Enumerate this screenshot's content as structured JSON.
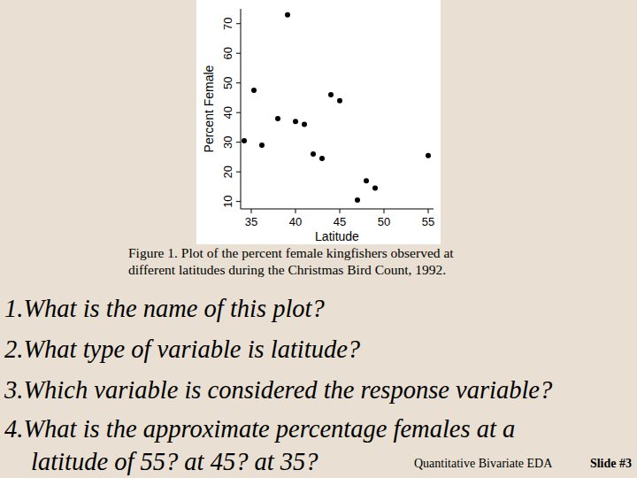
{
  "chart_data": {
    "type": "scatter",
    "x_label": "Latitude",
    "y_label": "Percent Female",
    "x": [
      34.2,
      35.3,
      36.2,
      38,
      39.1,
      40,
      41,
      42,
      43,
      44,
      45,
      47,
      48,
      49,
      55
    ],
    "values": [
      30.5,
      47.5,
      29,
      38,
      73,
      37,
      36,
      26,
      24.5,
      46,
      44,
      10.5,
      17,
      14.5,
      25.5
    ],
    "color": "#000000",
    "marker": "circle",
    "xlim": [
      33.8,
      55.6
    ],
    "ylim": [
      7.5,
      75
    ],
    "xticks": [
      35,
      40,
      45,
      50,
      55
    ],
    "yticks": [
      10,
      20,
      30,
      40,
      50,
      60,
      70
    ]
  },
  "slide": {
    "caption": [
      "Figure 1.  Plot of the percent female kingfishers observed at",
      "different latitudes during the Christmas Bird Count, 1992."
    ],
    "questions": [
      [
        "1.What is the name of this plot?"
      ],
      [
        "2.What type of variable is latitude?"
      ],
      [
        "3.Which variable is considered the response variable?"
      ],
      [
        "4.What is the approximate percentage females at a",
        "latitude of 55?  at 45?  at 35?"
      ]
    ],
    "footer": "Quantitative Bivariate EDA",
    "slide_number": "Slide #3"
  }
}
